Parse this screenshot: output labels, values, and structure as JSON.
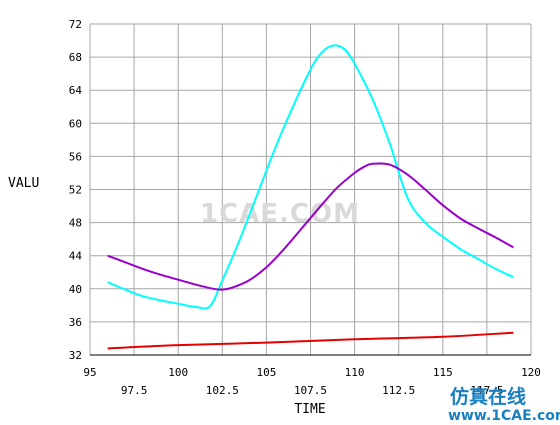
{
  "chart_data": {
    "type": "line",
    "xlabel": "TIME",
    "ylabel": "VALU",
    "xlim": [
      95,
      120
    ],
    "ylim": [
      32,
      72
    ],
    "x_ticks_upper": [
      "95",
      "100",
      "105",
      "110",
      "115",
      "120"
    ],
    "x_ticks_upper_values": [
      95,
      100,
      105,
      110,
      115,
      120
    ],
    "x_ticks_lower": [
      "97.5",
      "102.5",
      "107.5",
      "112.5",
      "117.5"
    ],
    "x_ticks_lower_values": [
      97.5,
      102.5,
      107.5,
      112.5,
      117.5
    ],
    "y_ticks": [
      "32",
      "36",
      "40",
      "44",
      "48",
      "52",
      "56",
      "60",
      "64",
      "68",
      "72"
    ],
    "y_ticks_values": [
      32,
      36,
      40,
      44,
      48,
      52,
      56,
      60,
      64,
      68,
      72
    ],
    "grid": true,
    "series": [
      {
        "color": "#00ffff",
        "x": [
          96,
          97,
          98,
          99,
          100,
          101,
          101.8,
          102.5,
          103.5,
          104.5,
          105.5,
          106.5,
          107.5,
          108,
          108.5,
          109,
          109.5,
          110,
          111,
          112,
          113,
          114,
          115,
          116,
          117,
          118,
          119
        ],
        "y": [
          40.8,
          39.9,
          39.1,
          38.6,
          38.2,
          37.8,
          37.9,
          41,
          46,
          51.5,
          57,
          62,
          66.5,
          68.2,
          69.2,
          69.4,
          68.8,
          67.2,
          63,
          57.5,
          51,
          48,
          46.3,
          44.8,
          43.6,
          42.4,
          41.4
        ]
      },
      {
        "color": "#9900cc",
        "x": [
          96,
          97,
          98,
          99,
          100,
          101,
          102,
          102.5,
          103,
          104,
          105,
          106,
          107,
          108,
          109,
          110,
          110.5,
          111,
          112,
          113,
          114,
          115,
          116,
          117,
          118,
          119
        ],
        "y": [
          44,
          43.2,
          42.4,
          41.7,
          41.1,
          40.5,
          40,
          39.9,
          40.1,
          41,
          42.6,
          44.8,
          47.3,
          49.8,
          52.2,
          54,
          54.7,
          55.1,
          55,
          53.8,
          52,
          50.1,
          48.5,
          47.3,
          46.2,
          45
        ]
      },
      {
        "color": "#e60000",
        "x": [
          96,
          100,
          105,
          110,
          115,
          119
        ],
        "y": [
          32.8,
          33.2,
          33.5,
          33.9,
          34.2,
          34.7
        ]
      }
    ]
  },
  "watermark": "1CAE.COM",
  "brand_cn": "仿真在线",
  "brand_url": "www.1CAE.com"
}
